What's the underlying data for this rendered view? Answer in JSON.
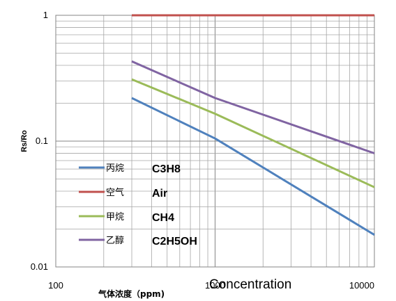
{
  "chart_data": {
    "type": "line",
    "xscale": "log",
    "yscale": "log",
    "xlim": [
      100,
      10000
    ],
    "ylim": [
      0.01,
      1
    ],
    "xticks": [
      "100",
      "1000",
      "10000"
    ],
    "yticks": [
      "1",
      "0.1",
      "0.01"
    ],
    "xlabel": "气体浓度（ppm)",
    "xlabel_en": "Concentration",
    "ylabel": "Rs/Ro",
    "grid": true,
    "legend_position": "left",
    "series": [
      {
        "name": "丙烷",
        "name_en": "C3H8",
        "color": "#4f81bd",
        "x": [
          300,
          1000,
          10000
        ],
        "y": [
          0.22,
          0.105,
          0.018
        ]
      },
      {
        "name": "空气",
        "name_en": "Air",
        "color": "#c0504d",
        "x": [
          300,
          1000,
          10000
        ],
        "y": [
          1,
          1,
          1
        ]
      },
      {
        "name": "甲烷",
        "name_en": "CH4",
        "color": "#9bbb59",
        "x": [
          300,
          1000,
          10000
        ],
        "y": [
          0.31,
          0.165,
          0.043
        ]
      },
      {
        "name": "乙醇",
        "name_en": "C2H5OH",
        "color": "#8064a2",
        "x": [
          300,
          1000,
          10000
        ],
        "y": [
          0.43,
          0.22,
          0.08
        ]
      }
    ]
  }
}
